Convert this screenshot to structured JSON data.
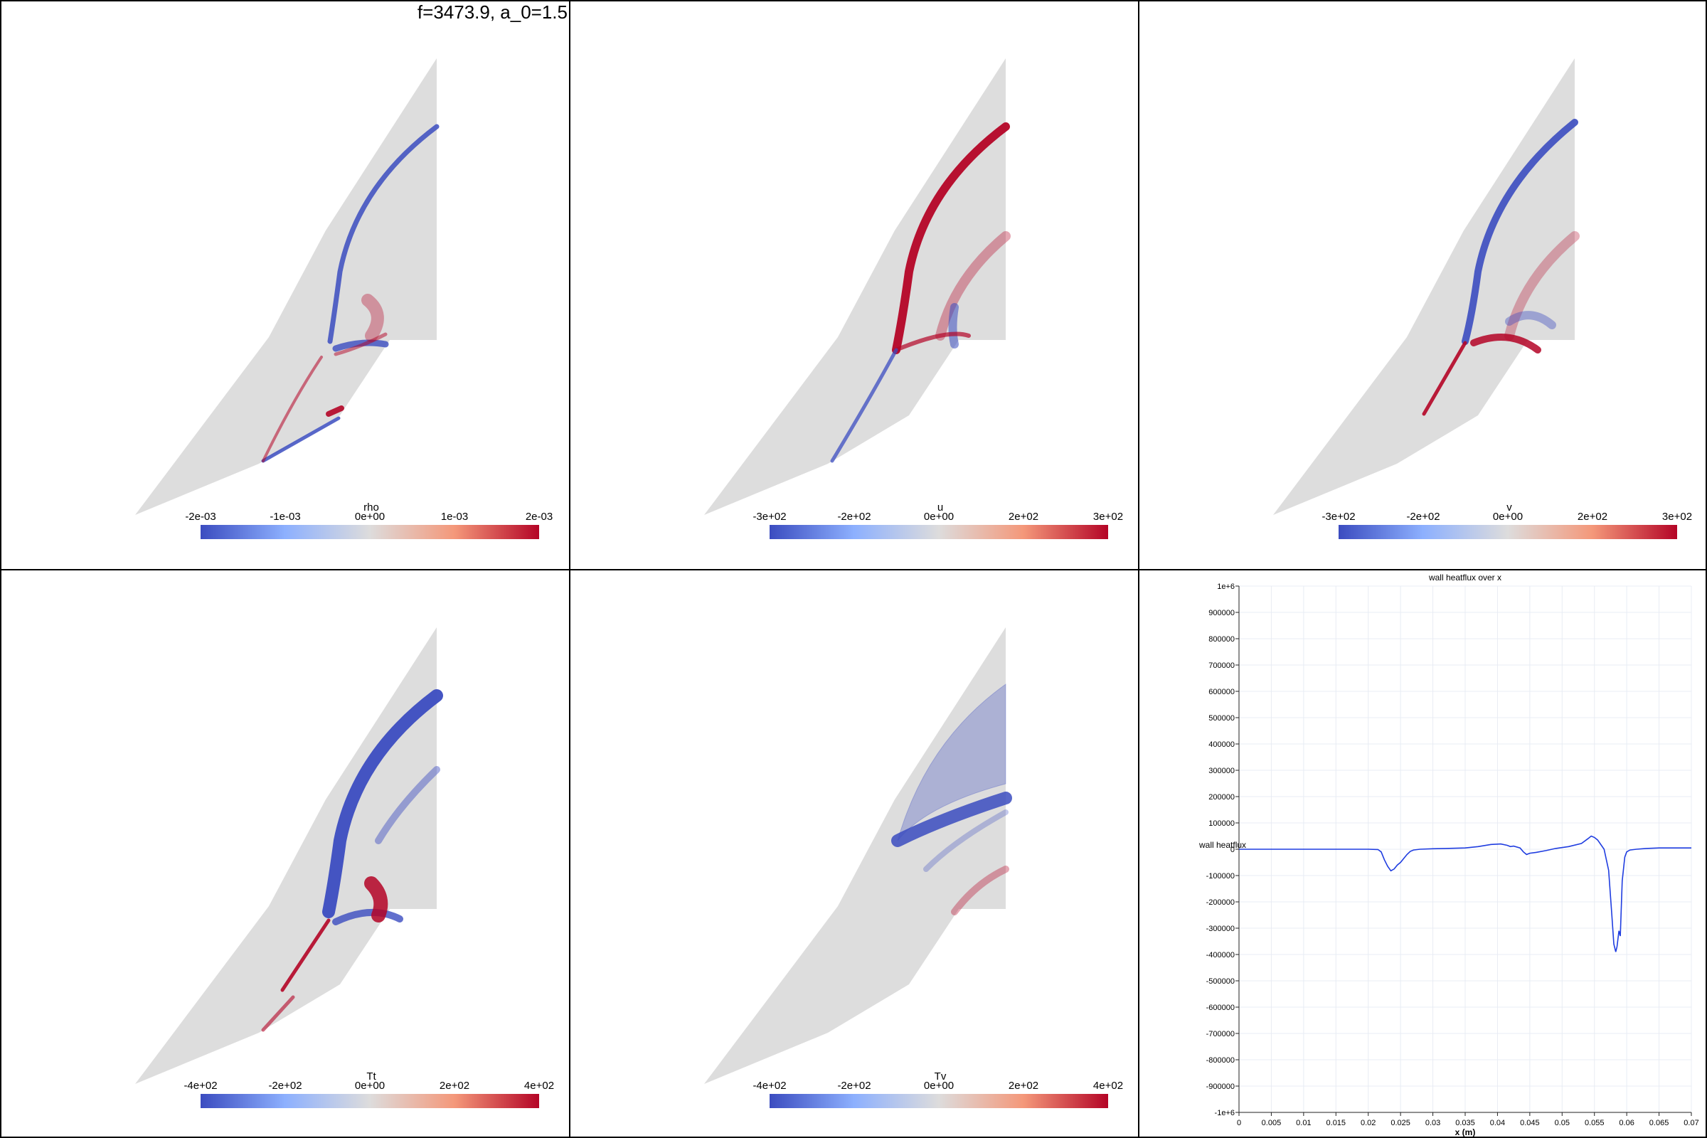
{
  "window_title": "f=3473.9, a_0=1.5",
  "colors": {
    "domain_gray": "#dddddd",
    "cool": "#3b4cc0",
    "neutral": "#dddcdc",
    "warm": "#b40426",
    "line_blue": "#1f3de0"
  },
  "fields": [
    {
      "id": "rho",
      "label": "rho",
      "ticks": [
        "-2e-03",
        "-1e-03",
        "0e+00",
        "1e-03",
        "2e-03"
      ],
      "variant": "rho"
    },
    {
      "id": "u",
      "label": "u",
      "ticks": [
        "-3e+02",
        "-2e+02",
        "0e+00",
        "2e+02",
        "3e+02"
      ],
      "variant": "u"
    },
    {
      "id": "v",
      "label": "v",
      "ticks": [
        "-3e+02",
        "-2e+02",
        "0e+00",
        "2e+02",
        "3e+02"
      ],
      "variant": "v"
    },
    {
      "id": "Tt",
      "label": "Tt",
      "ticks": [
        "-4e+02",
        "-2e+02",
        "0e+00",
        "2e+02",
        "4e+02"
      ],
      "variant": "tt"
    },
    {
      "id": "Tv",
      "label": "Tv",
      "ticks": [
        "-4e+02",
        "-2e+02",
        "0e+00",
        "2e+02",
        "4e+02"
      ],
      "variant": "tv"
    }
  ],
  "chart_data": {
    "type": "line",
    "title": "wall heatflux over x",
    "xlabel": "x (m)",
    "ylabel": "wall heatflux",
    "xlim": [
      0,
      0.07
    ],
    "ylim": [
      -1000000,
      1000000
    ],
    "x_ticks": [
      "0",
      "0.005",
      "0.01",
      "0.015",
      "0.02",
      "0.025",
      "0.03",
      "0.035",
      "0.04",
      "0.045",
      "0.05",
      "0.055",
      "0.06",
      "0.065",
      "0.07"
    ],
    "y_ticks": [
      "1e+6",
      "900000",
      "800000",
      "700000",
      "600000",
      "500000",
      "400000",
      "300000",
      "200000",
      "100000",
      "0",
      "-100000",
      "-200000",
      "-300000",
      "-400000",
      "-500000",
      "-600000",
      "-700000",
      "-800000",
      "-900000",
      "-1e+6"
    ],
    "grid": true,
    "series": [
      {
        "color": "#1f3de0",
        "x": [
          0,
          0.005,
          0.01,
          0.015,
          0.02,
          0.0215,
          0.022,
          0.0225,
          0.023,
          0.0235,
          0.024,
          0.0245,
          0.025,
          0.026,
          0.0265,
          0.027,
          0.028,
          0.03,
          0.032,
          0.035,
          0.037,
          0.039,
          0.0405,
          0.0415,
          0.042,
          0.0425,
          0.0435,
          0.044,
          0.0445,
          0.045,
          0.046,
          0.0475,
          0.049,
          0.051,
          0.053,
          0.054,
          0.0545,
          0.055,
          0.0555,
          0.0565,
          0.0572,
          0.0577,
          0.058,
          0.0583,
          0.0585,
          0.0588,
          0.059,
          0.0593,
          0.0597,
          0.06,
          0.0605,
          0.0615,
          0.063,
          0.065,
          0.067,
          0.07
        ],
        "y": [
          0,
          0,
          0,
          0,
          0,
          -1000,
          -10000,
          -40000,
          -65000,
          -82000,
          -75000,
          -60000,
          -50000,
          -20000,
          -8000,
          -3000,
          0,
          2000,
          3000,
          5000,
          10000,
          18000,
          20000,
          15000,
          10000,
          12000,
          5000,
          -10000,
          -20000,
          -15000,
          -12000,
          -5000,
          3000,
          10000,
          22000,
          40000,
          50000,
          45000,
          35000,
          0,
          -80000,
          -250000,
          -360000,
          -390000,
          -370000,
          -310000,
          -330000,
          -120000,
          -30000,
          -10000,
          -3000,
          0,
          3000,
          5000,
          5000,
          5000
        ]
      }
    ]
  }
}
